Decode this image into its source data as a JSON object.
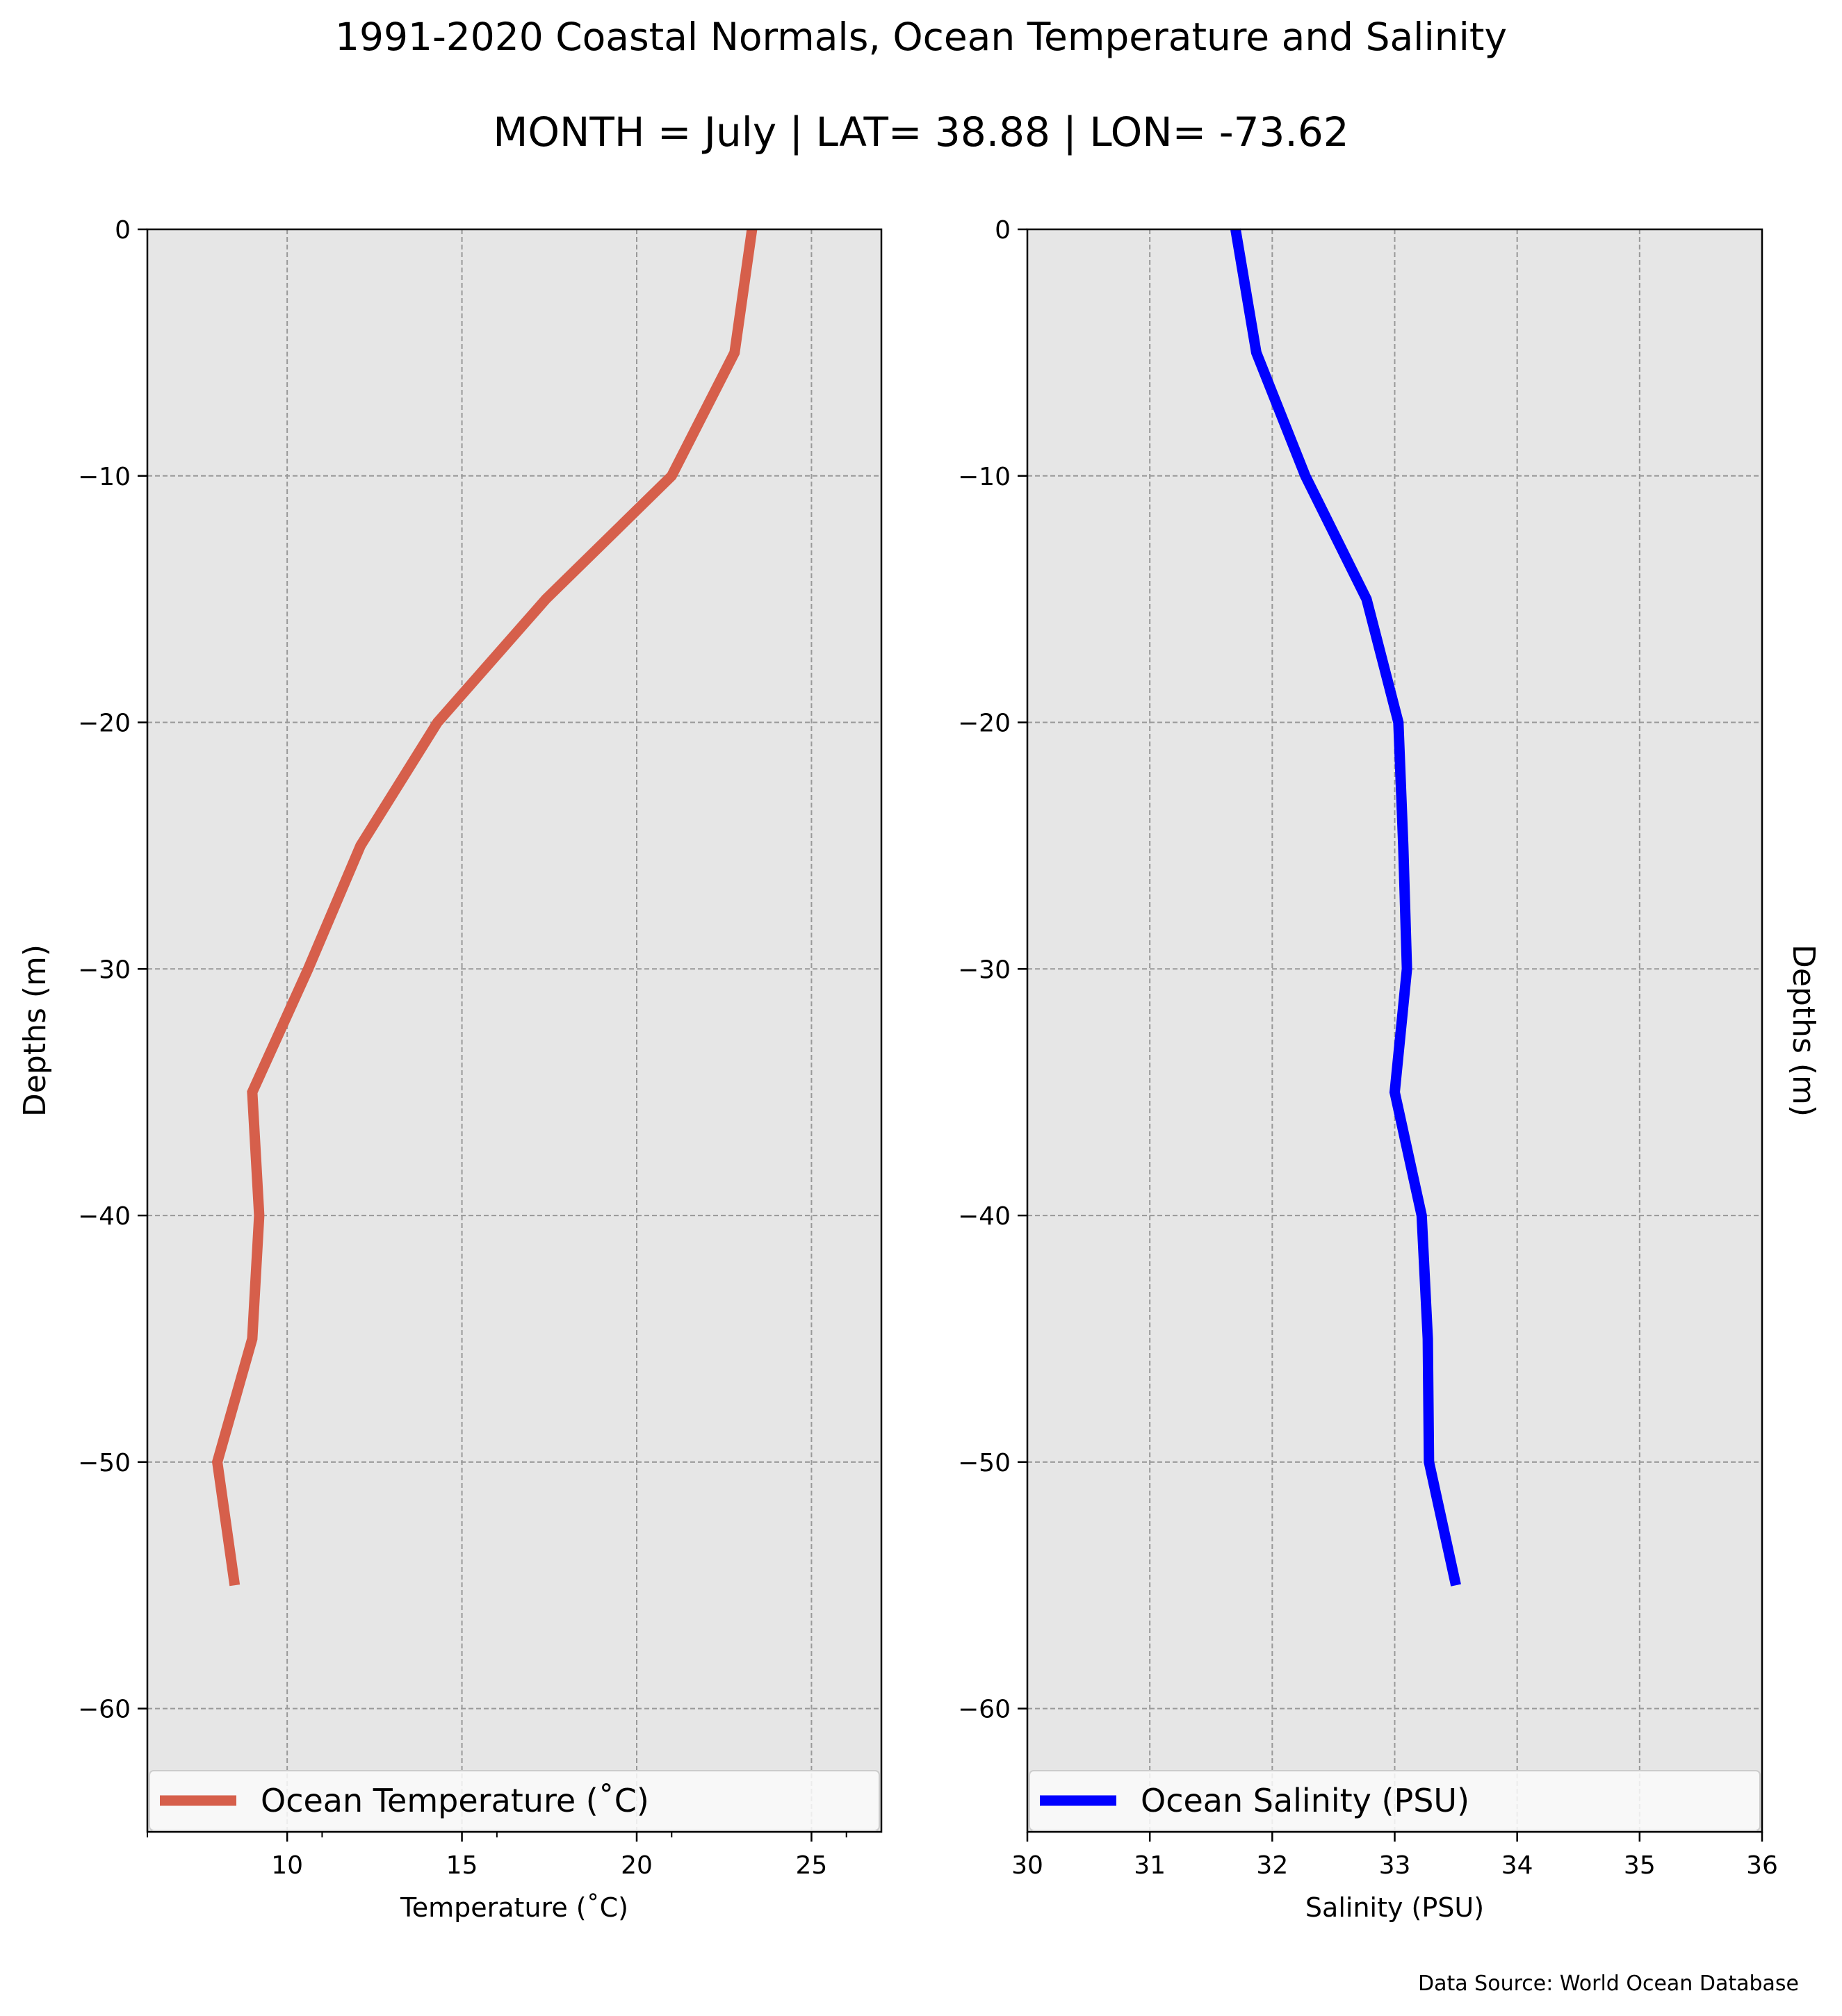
{
  "title": "1991-2020 Coastal Normals, Ocean Temperature and Salinity",
  "subtitle": "MONTH = July | LAT= 38.88 | LON= -73.62",
  "source_note": "Data Source: World Ocean Database",
  "chart_data": [
    {
      "type": "line",
      "orientation": "depth-profile",
      "xlabel": "Temperature ($^\\circ$C)",
      "xlabel_display": "Temperature (˚C)",
      "ylabel": "Depths (m)",
      "xlim": [
        6,
        27
      ],
      "ylim": [
        -65,
        0
      ],
      "xticks": [
        10,
        15,
        20,
        25
      ],
      "xminorticks": [
        6,
        11,
        16,
        21,
        26
      ],
      "yticks": [
        0,
        -10,
        -20,
        -30,
        -40,
        -50,
        -60
      ],
      "ytick_labels": [
        "0",
        "−10",
        "−20",
        "−30",
        "−40",
        "−50",
        "−60"
      ],
      "grid": true,
      "legend_position": "bottom",
      "series": [
        {
          "name": "Ocean Temperature ($^\\circ$C)",
          "name_display": "Ocean Temperature (˚C)",
          "color": "#d65f4b",
          "depth": [
            0,
            -5,
            -10,
            -15,
            -20,
            -25,
            -30,
            -35,
            -40,
            -45,
            -50,
            -55
          ],
          "values": [
            23.3,
            22.8,
            21.0,
            17.4,
            14.3,
            12.1,
            10.6,
            9.0,
            9.2,
            9.0,
            8.0,
            8.5
          ]
        }
      ]
    },
    {
      "type": "line",
      "orientation": "depth-profile",
      "xlabel": "Salinity (PSU)",
      "ylabel": "Depths (m)",
      "ylabel_side": "right",
      "xlim": [
        30,
        36
      ],
      "ylim": [
        -65,
        0
      ],
      "xticks": [
        30,
        31,
        32,
        33,
        34,
        35,
        36
      ],
      "yticks": [
        0,
        -10,
        -20,
        -30,
        -40,
        -50,
        -60
      ],
      "ytick_labels": [
        "0",
        "−10",
        "−20",
        "−30",
        "−40",
        "−50",
        "−60"
      ],
      "grid": true,
      "legend_position": "bottom",
      "series": [
        {
          "name": "Ocean Salinity (PSU)",
          "color": "#0000ff",
          "depth": [
            0,
            -5,
            -10,
            -15,
            -20,
            -25,
            -30,
            -35,
            -40,
            -45,
            -50,
            -55
          ],
          "values": [
            31.7,
            31.87,
            32.27,
            32.77,
            33.03,
            33.07,
            33.1,
            33.0,
            33.22,
            33.27,
            33.28,
            33.5
          ]
        }
      ]
    }
  ]
}
